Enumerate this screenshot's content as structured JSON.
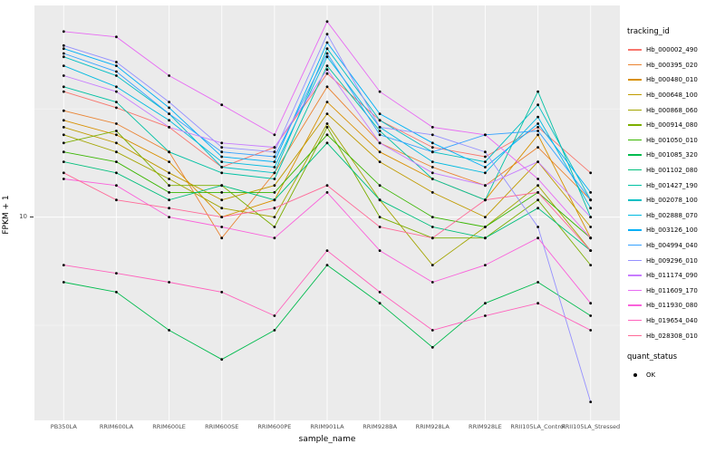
{
  "figure": {
    "ylabel": "FPKM + 1",
    "xlabel": "sample_name",
    "y_tick_label": "10",
    "panel_bg": "#EBEBEB",
    "grid_color": "#FFFFFF",
    "point_color": "#000000"
  },
  "legend": {
    "tracking_title": "tracking_id",
    "quant_title": "quant_status",
    "quant_label": "OK"
  },
  "chart_data": {
    "type": "line",
    "x_type": "categorical",
    "title": "",
    "xlabel": "sample_name",
    "ylabel": "FPKM + 1",
    "y_scale": "log10",
    "ylim": [
      1.15,
      95
    ],
    "y_breaks": [
      10
    ],
    "grid": true,
    "legend_position": "right",
    "point_marker": "black dot (quant_status OK)",
    "categories": [
      "PB350LA",
      "RRIM600LA",
      "RRIM600LE",
      "RRIM600SE",
      "RRIM600PE",
      "RRIM901LA",
      "RRIM928BA",
      "RRIM928LA",
      "RRIM928LE",
      "RRII105LA_Control",
      "RRII105LA_Stressed"
    ],
    "series": [
      {
        "name": "Hb_000002_490",
        "color": "#F8766D",
        "values": [
          38,
          32,
          26,
          17,
          21,
          46,
          28,
          21,
          19,
          26,
          16
        ]
      },
      {
        "name": "Hb_000395_020",
        "color": "#EA8331",
        "values": [
          31,
          27,
          20,
          8,
          16,
          40,
          22,
          17,
          14,
          21,
          12
        ]
      },
      {
        "name": "Hb_000480_010",
        "color": "#D89000",
        "values": [
          28,
          24,
          18,
          10,
          12,
          34,
          20,
          15,
          12,
          24,
          8
        ]
      },
      {
        "name": "Hb_000648_100",
        "color": "#C09B00",
        "values": [
          26,
          22,
          16,
          12,
          14,
          30,
          18,
          13,
          10,
          18,
          9
        ]
      },
      {
        "name": "Hb_000868_060",
        "color": "#A3A500",
        "values": [
          24,
          20,
          15,
          11,
          10,
          27,
          12,
          6,
          9,
          14,
          7
        ]
      },
      {
        "name": "Hb_000914_080",
        "color": "#7CAE00",
        "values": [
          22,
          25,
          14,
          14,
          9,
          26,
          10,
          8,
          8,
          12,
          6
        ]
      },
      {
        "name": "Hb_001050_010",
        "color": "#39B600",
        "values": [
          20,
          18,
          13,
          13,
          13,
          24,
          14,
          10,
          9,
          13,
          8
        ]
      },
      {
        "name": "Hb_001085_320",
        "color": "#00BB4E",
        "values": [
          5,
          4.5,
          3,
          2.2,
          3,
          6,
          4,
          2.5,
          4,
          5,
          3.5
        ]
      },
      {
        "name": "Hb_001102_080",
        "color": "#00BF7D",
        "values": [
          18,
          16,
          12,
          14,
          12,
          22,
          12,
          9,
          8,
          11,
          7
        ]
      },
      {
        "name": "Hb_001427_190",
        "color": "#00C1A3",
        "values": [
          40,
          34,
          20,
          16,
          15,
          50,
          25,
          15,
          12,
          38,
          10
        ]
      },
      {
        "name": "Hb_002078_100",
        "color": "#00BFC4",
        "values": [
          55,
          45,
          30,
          17,
          16,
          60,
          28,
          20,
          18,
          33,
          12
        ]
      },
      {
        "name": "Hb_002888_070",
        "color": "#00BAE0",
        "values": [
          50,
          40,
          28,
          18,
          17,
          55,
          26,
          18,
          16,
          29,
          11
        ]
      },
      {
        "name": "Hb_003126_100",
        "color": "#00B0F6",
        "values": [
          60,
          50,
          32,
          19,
          18,
          64,
          30,
          22,
          17,
          27,
          13
        ]
      },
      {
        "name": "Hb_004994_040",
        "color": "#35A2FF",
        "values": [
          57,
          47,
          30,
          20,
          19,
          57,
          24,
          20,
          24,
          25,
          12
        ]
      },
      {
        "name": "Hb_009296_010",
        "color": "#9590FF",
        "values": [
          62,
          52,
          34,
          21,
          20,
          70,
          26,
          24,
          20,
          9,
          1.4
        ]
      },
      {
        "name": "Hb_011174_090",
        "color": "#C77CFF",
        "values": [
          45,
          38,
          26,
          22,
          21,
          48,
          22,
          16,
          14,
          18,
          10
        ]
      },
      {
        "name": "Hb_011609_170",
        "color": "#E76BF3",
        "values": [
          72,
          68,
          45,
          33,
          24,
          80,
          38,
          26,
          24,
          15,
          8
        ]
      },
      {
        "name": "Hb_011930_080",
        "color": "#FA62DB",
        "values": [
          15,
          14,
          10,
          9,
          8,
          13,
          7,
          5,
          6,
          8,
          4
        ]
      },
      {
        "name": "Hb_019654_040",
        "color": "#FF62BC",
        "values": [
          6,
          5.5,
          5,
          4.5,
          3.5,
          7,
          4.5,
          3,
          3.5,
          4,
          3
        ]
      },
      {
        "name": "Hb_028308_010",
        "color": "#FF6A98",
        "values": [
          16,
          12,
          11,
          10,
          11,
          14,
          9,
          8,
          12,
          13,
          7
        ]
      }
    ]
  }
}
